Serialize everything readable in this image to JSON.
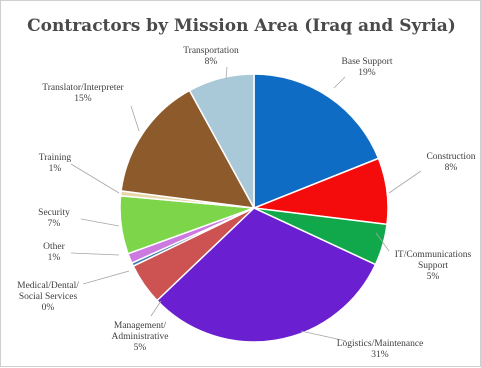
{
  "chart_data": {
    "type": "pie",
    "title": "Contractors by Mission Area (Iraq and Syria)",
    "legend": "none",
    "slices": [
      {
        "label": "Base Support",
        "label_lines": [
          "Base Support"
        ],
        "pct_text": "19%",
        "value": 19,
        "color": "#0e6cc4"
      },
      {
        "label": "Construction",
        "label_lines": [
          "Construction"
        ],
        "pct_text": "8%",
        "value": 8,
        "color": "#f40c0c"
      },
      {
        "label": "IT/Communications Support",
        "label_lines": [
          "IT/Communications",
          "Support"
        ],
        "pct_text": "5%",
        "value": 5,
        "color": "#10a84a"
      },
      {
        "label": "Logistics/Maintenance",
        "label_lines": [
          "Logistics/Maintenance"
        ],
        "pct_text": "31%",
        "value": 31,
        "color": "#6a1fd0"
      },
      {
        "label": "Management/ Administrative",
        "label_lines": [
          "Management/",
          "Administrative"
        ],
        "pct_text": "5%",
        "value": 5,
        "color": "#cd5252"
      },
      {
        "label": "Medical/Dental/ Social Services",
        "label_lines": [
          "Medical/Dental/",
          "Social Services"
        ],
        "pct_text": "0%",
        "value": 0.4,
        "color": "#3f7aa8"
      },
      {
        "label": "Other",
        "label_lines": [
          "Other"
        ],
        "pct_text": "1%",
        "value": 1.2,
        "color": "#cc7ae0"
      },
      {
        "label": "Security",
        "label_lines": [
          "Security"
        ],
        "pct_text": "7%",
        "value": 7,
        "color": "#7dd64a"
      },
      {
        "label": "Training",
        "label_lines": [
          "Training"
        ],
        "pct_text": "1%",
        "value": 0.6,
        "color": "#e7d6a8"
      },
      {
        "label": "Translator/Interpreter",
        "label_lines": [
          "Translator/Interpreter"
        ],
        "pct_text": "15%",
        "value": 15,
        "color": "#8c5a2b"
      },
      {
        "label": "Transportation",
        "label_lines": [
          "Transportation"
        ],
        "pct_text": "8%",
        "value": 8,
        "color": "#a9c8d8"
      }
    ]
  }
}
